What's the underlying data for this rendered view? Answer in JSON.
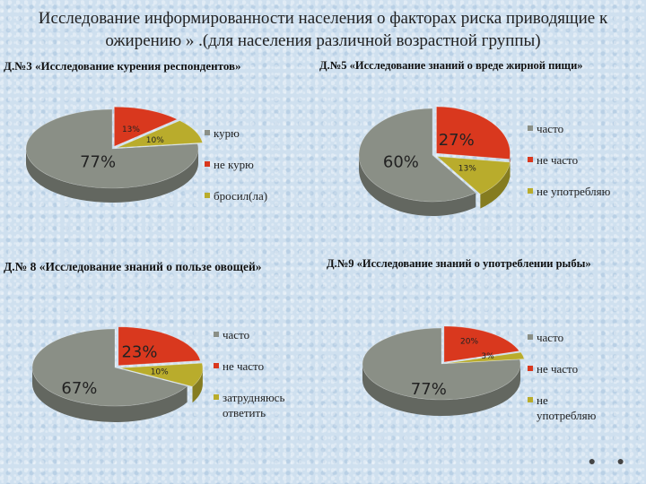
{
  "title": "Исследование информированности населения о факторах риска приводящие к ожирению » .(для населения различной возрастной группы)",
  "colors": {
    "gray": "#8a8f86",
    "red": "#d9381e",
    "yellow": "#b9ac2c"
  },
  "chart_data": [
    {
      "type": "pie",
      "title": "Д.№3 «Исследование курения респондентов»",
      "categories": [
        "курю",
        "не курю",
        "бросил(ла)"
      ],
      "values": [
        77,
        13,
        10
      ],
      "labels": [
        "77%",
        "13%",
        "10%"
      ]
    },
    {
      "type": "pie",
      "title": "Д.№5 «Исследование знаний о вреде жирной пищи»",
      "categories": [
        "часто",
        "не часто",
        "не употребляю"
      ],
      "values": [
        60,
        27,
        13
      ],
      "labels": [
        "60%",
        "27%",
        "13%"
      ]
    },
    {
      "type": "pie",
      "title": "Д.№ 8 «Исследование знаний о пользе овощей»",
      "categories": [
        "часто",
        "не часто",
        "затрудняюсь ответить"
      ],
      "values": [
        67,
        23,
        10
      ],
      "labels": [
        "67%",
        "23%",
        "10%"
      ]
    },
    {
      "type": "pie",
      "title": "Д.№9 «Исследование знаний о употреблении рыбы»",
      "categories": [
        "часто",
        "не часто",
        "не употребляю"
      ],
      "values": [
        77,
        20,
        3
      ],
      "labels": [
        "77%",
        "20%",
        "3%"
      ]
    }
  ]
}
